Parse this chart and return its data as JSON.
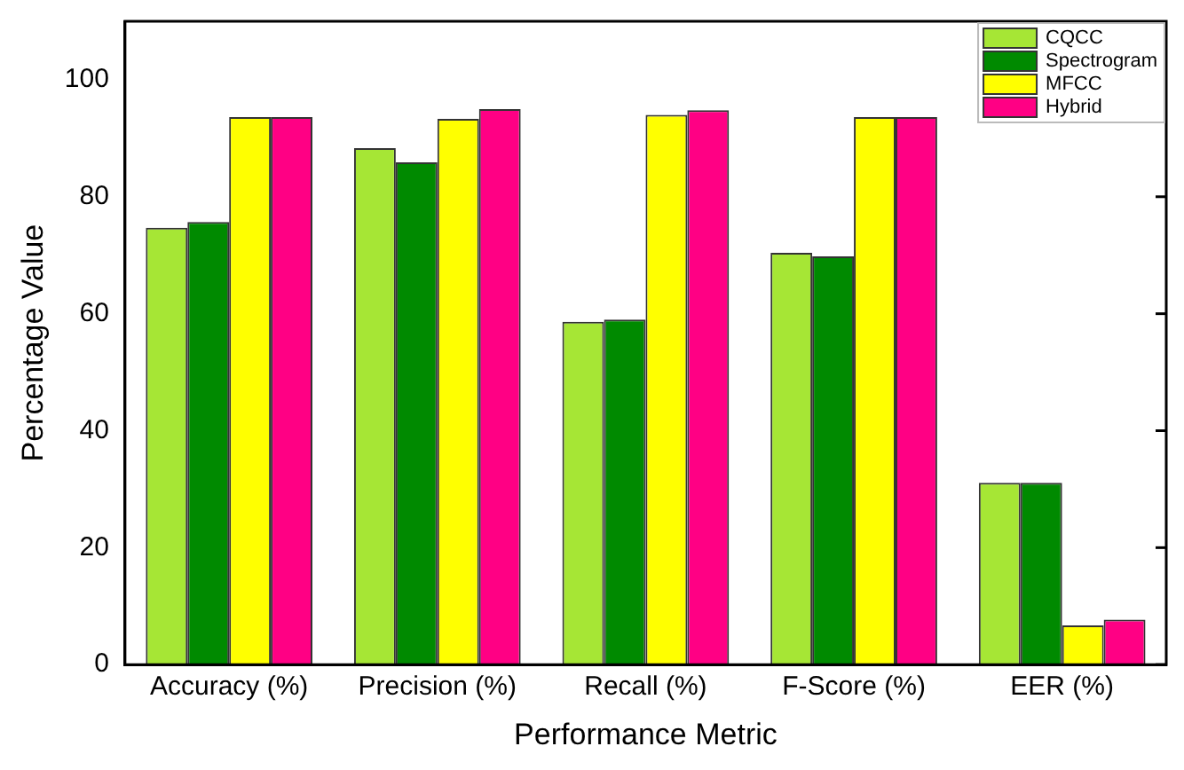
{
  "chart_data": {
    "type": "bar",
    "xlabel": "Performance Metric",
    "ylabel": "Percentage Value",
    "categories": [
      "Accuracy (%)",
      "Precision (%)",
      "Recall (%)",
      "F-Score (%)",
      "EER (%)"
    ],
    "series": [
      {
        "name": "CQCC",
        "color": "#a6e635",
        "values": [
          74.7,
          88.3,
          58.6,
          70.4,
          31.1
        ]
      },
      {
        "name": "Spectrogram",
        "color": "#008a00",
        "values": [
          75.7,
          85.9,
          59.0,
          69.8,
          31.1
        ]
      },
      {
        "name": "MFCC",
        "color": "#ffff00",
        "values": [
          93.6,
          93.3,
          94.0,
          93.6,
          6.7
        ]
      },
      {
        "name": "Hybrid",
        "color": "#ff0084",
        "values": [
          93.6,
          95.0,
          94.8,
          93.6,
          7.7
        ]
      }
    ],
    "ylim": [
      0,
      110
    ],
    "yticks": [
      0,
      20,
      40,
      60,
      80,
      100
    ],
    "grid": false,
    "legend": "top right"
  }
}
